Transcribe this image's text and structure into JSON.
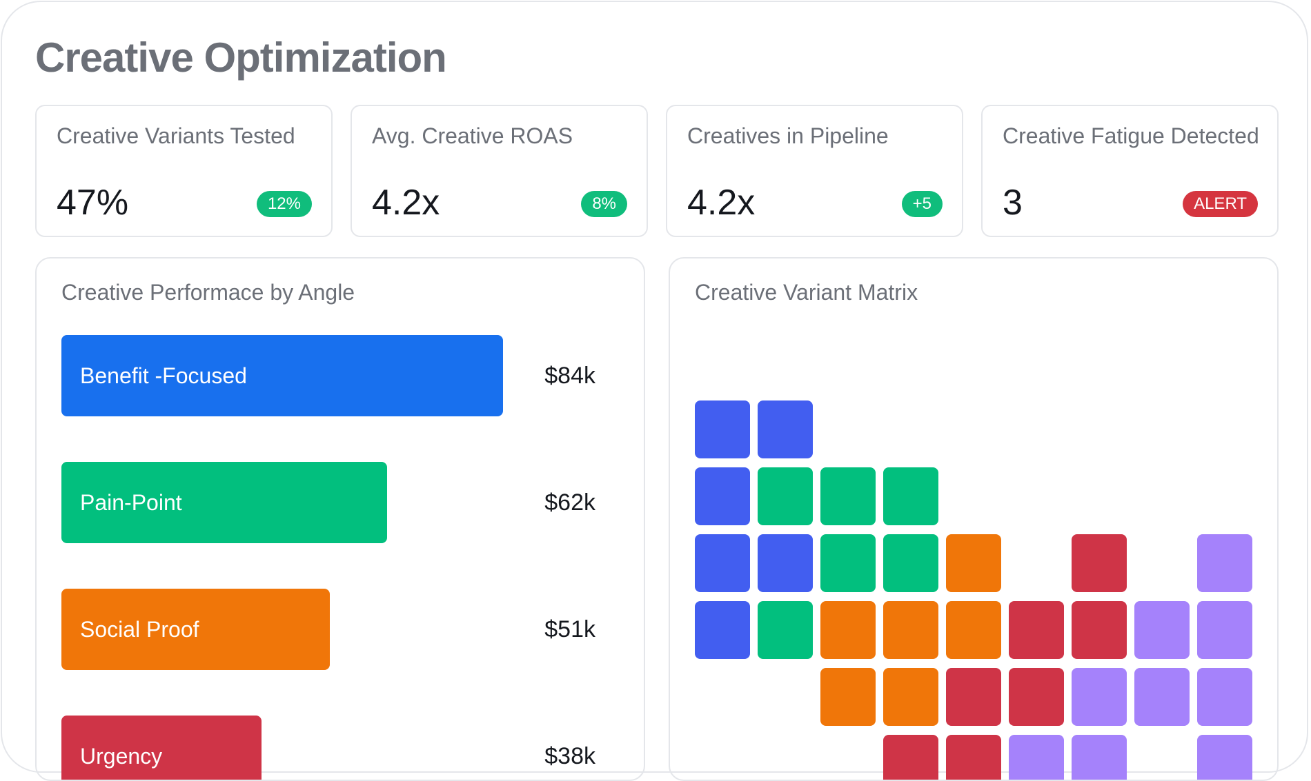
{
  "page": {
    "title": "Creative Optimization"
  },
  "kpis": [
    {
      "label": "Creative Variants Tested",
      "value": "47%",
      "badge": "12%",
      "badge_color": "#10bd7c"
    },
    {
      "label": "Avg. Creative ROAS",
      "value": "4.2x",
      "badge": "8%",
      "badge_color": "#10bd7c"
    },
    {
      "label": "Creatives in Pipeline",
      "value": "4.2x",
      "badge": "+5",
      "badge_color": "#10bd7c"
    },
    {
      "label": "Creative Fatigue Detected",
      "value": "3",
      "badge": "ALERT",
      "badge_color": "#d5353f"
    }
  ],
  "performance_panel": {
    "title": "Creative Performace by Angle"
  },
  "matrix_panel": {
    "title": "Creative Variant Matrix"
  },
  "chart_data": {
    "type": "bar",
    "orientation": "horizontal",
    "title": "Creative Performace by Angle",
    "categories": [
      "Benefit -Focused",
      "Pain-Point",
      "Social Proof",
      "Urgency"
    ],
    "values": [
      84,
      62,
      51,
      38
    ],
    "value_labels": [
      "$84k",
      "$62k",
      "$51k",
      "$38k"
    ],
    "unit": "$k",
    "colors": [
      "#1870ee",
      "#02bf7e",
      "#f07609",
      "#cf3447"
    ],
    "xlim": [
      0,
      100
    ]
  },
  "matrix": {
    "colors": {
      "B": "#425ef0",
      "G": "#02bf7e",
      "O": "#f07609",
      "R": "#cf3447",
      "P": "#a582fb"
    },
    "rows": [
      "BB.......",
      "BGGG.....",
      "BBGGO.R.P",
      "BGOOORRPP",
      "..OORRPPP",
      "...RRPP.P"
    ]
  }
}
